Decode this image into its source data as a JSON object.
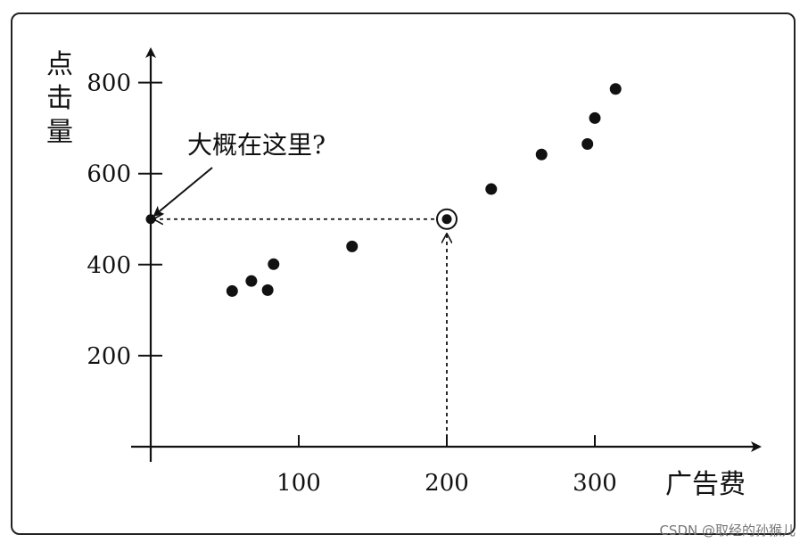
{
  "chart_data": {
    "type": "scatter",
    "x": [
      55,
      68,
      79,
      83,
      136,
      230,
      264,
      295,
      300,
      314
    ],
    "y": [
      342,
      364,
      344,
      401,
      440,
      566,
      642,
      665,
      722,
      786
    ],
    "xlabel": "广告费",
    "ylabel": "点击量",
    "xticks": [
      "100",
      "200",
      "300"
    ],
    "yticks": [
      "200",
      "400",
      "600",
      "800"
    ],
    "xlim": [
      0,
      420
    ],
    "ylim": [
      0,
      950
    ],
    "annotation": {
      "text": "大概在这里?",
      "query_x": 200,
      "predicted_y": 500
    },
    "grid": false
  },
  "watermark": "CSDN @取经的孙猴儿"
}
